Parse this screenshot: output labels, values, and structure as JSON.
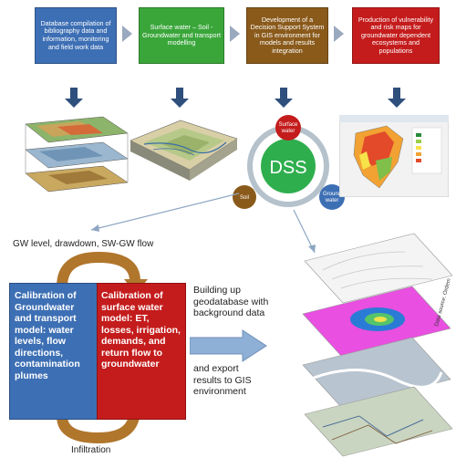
{
  "top_row": [
    {
      "text": "Database compilation of bibliography data and information, monitoring and field work data",
      "color": "#3d6fb4"
    },
    {
      "text": "Surface water – Soil - Groundwater and transport modelling",
      "color": "#3aa63a"
    },
    {
      "text": "Development of a Decision Support System in GIS environment for models and results integration",
      "color": "#8a5a1b"
    },
    {
      "text": "Production of vulnerability and risk maps for groundwater dependent ecosystems and populations",
      "color": "#c41c1c"
    }
  ],
  "dss": {
    "center": "DSS",
    "surface_water": "Surface water",
    "soil": "Soil",
    "ground_water": "Ground water"
  },
  "gw_label": "GW level, drawdown, SW-GW flow",
  "calibration_gw": "Calibration of Groundwater and transport model: water levels, flow directions, contamination plumes",
  "calibration_sw": "Calibration of surface water model: ET, losses, irrigation, demands, and return flow to groundwater",
  "geodatabase_text": "Building up geodatabase with background data",
  "export_text": "and export results to GIS environment",
  "infiltration": "Infiltration",
  "data_source": "Data source: Ordem"
}
